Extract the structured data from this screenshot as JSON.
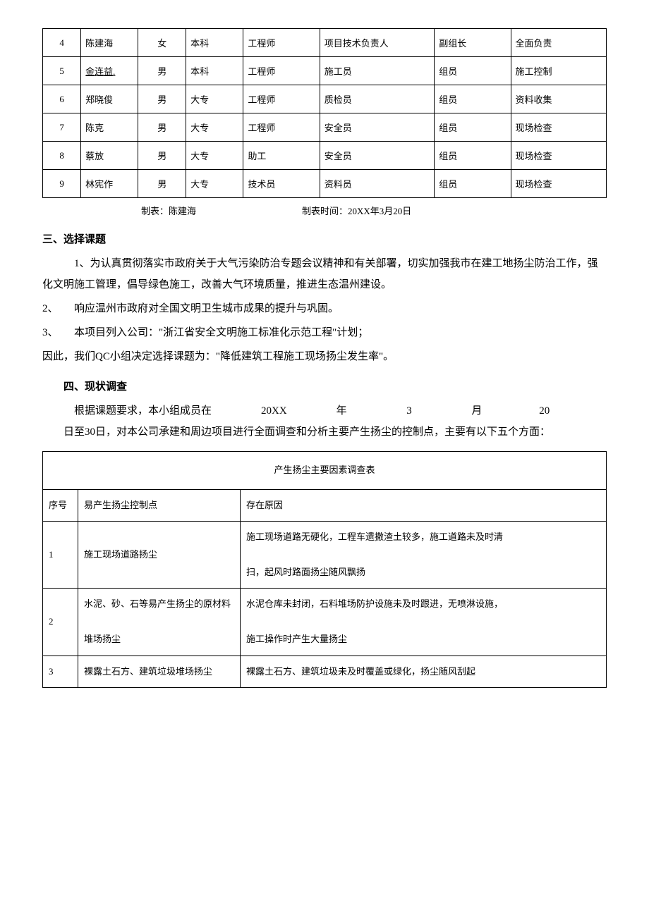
{
  "members_table": {
    "rows": [
      {
        "no": "4",
        "name": "陈建海",
        "gender": "女",
        "edu": "本科",
        "title": "工程师",
        "position": "项目技术负责人",
        "role": "副组长",
        "duty": "全面负责"
      },
      {
        "no": "5",
        "name": "金连益.",
        "name_underline": true,
        "gender": "男",
        "edu": "本科",
        "title": "工程师",
        "position": "施工员",
        "role": "组员",
        "duty": "施工控制"
      },
      {
        "no": "6",
        "name": "郑晓俊",
        "gender": "男",
        "edu": "大专",
        "title": "工程师",
        "position": "质检员",
        "role": "组员",
        "duty": "资料收集"
      },
      {
        "no": "7",
        "name": "陈克",
        "gender": "男",
        "edu": "大专",
        "title": "工程师",
        "position": "安全员",
        "role": "组员",
        "duty": "现场检查"
      },
      {
        "no": "8",
        "name": "蔡放",
        "gender": "男",
        "edu": "大专",
        "title": "助工",
        "position": "安全员",
        "role": "组员",
        "duty": "现场检查"
      },
      {
        "no": "9",
        "name": "林宪作",
        "gender": "男",
        "edu": "大专",
        "title": "技术员",
        "position": "资料员",
        "role": "组员",
        "duty": "现场检查"
      }
    ],
    "caption_author": "制表：陈建海",
    "caption_time": "制表时间：20XX年3月20日"
  },
  "section3": {
    "title": "三、选择课题",
    "p1": "1、为认真贯彻落实市政府关于大气污染防治专题会议精神和有关部署，切实加强我市在建工地扬尘防治工作，强化文明施工管理，倡导绿色施工，改善大气环境质量，推进生态温州建设。",
    "p2": "2、　　响应温州市政府对全国文明卫生城市成果的提升与巩固。",
    "p3": "3、　　本项目列入公司：\"浙江省安全文明施工标准化示范工程\"计划；",
    "p4": "因此，我们QC小组决定选择课题为：\"降低建筑工程施工现场扬尘发生率\"。"
  },
  "section4": {
    "title": "四、现状调查",
    "spaced": {
      "lead": "根据课题要求，本小组成员在",
      "y": "20XX",
      "yl": "年",
      "m": "3",
      "ml": "月",
      "d": "20"
    },
    "p2": "日至30日，对本公司承建和周边项目进行全面调查和分析主要产生扬尘的控制点，主要有以下五个方面：",
    "survey_title": "产生扬尘主要因素调查表",
    "header_seq": "序号",
    "header_point": "易产生扬尘控制点",
    "header_reason": "存在原因",
    "rows": [
      {
        "no": "1",
        "point": "施工现场道路扬尘",
        "reason": "施工现场道路无硬化，工程车遗撒渣土较多，施工道路未及时清\n\n扫，起风时路面扬尘随风飘扬"
      },
      {
        "no": "2",
        "point": "水泥、砂、石等易产生扬尘的原材料\n\n堆场扬尘",
        "reason": "水泥仓库未封闭，石料堆场防护设施未及时跟进，无喷淋设施，\n\n施工操作时产生大量扬尘"
      },
      {
        "no": "3",
        "point": "裸露土石方、建筑垃圾堆场扬尘",
        "reason": "裸露土石方、建筑垃圾未及时覆盖或绿化，扬尘随风刮起"
      }
    ]
  }
}
